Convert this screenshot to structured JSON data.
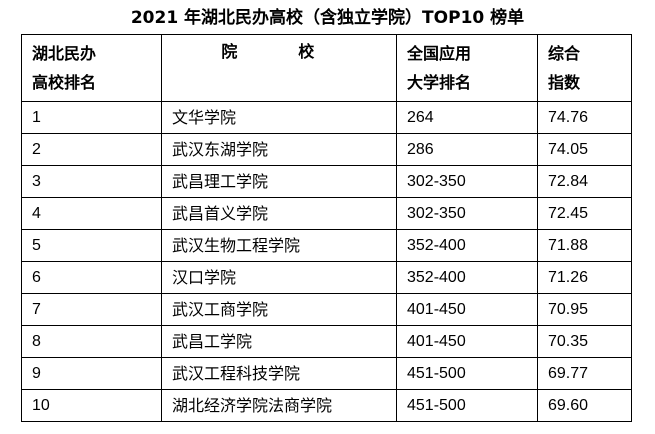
{
  "title": "2021 年湖北民办高校（含独立学院）TOP10 榜单",
  "headers": {
    "rank_line1": "湖北民办",
    "rank_line2": "高校排名",
    "school": "院　校",
    "national_line1": "全国应用",
    "national_line2": "大学排名",
    "score_line1": "综合",
    "score_line2": "指数"
  },
  "rows": [
    {
      "rank": "1",
      "school": "文华学院",
      "national": "264",
      "score": "74.76"
    },
    {
      "rank": "2",
      "school": "武汉东湖学院",
      "national": "286",
      "score": "74.05"
    },
    {
      "rank": "3",
      "school": "武昌理工学院",
      "national": "302-350",
      "score": "72.84"
    },
    {
      "rank": "4",
      "school": "武昌首义学院",
      "national": "302-350",
      "score": "72.45"
    },
    {
      "rank": "5",
      "school": "武汉生物工程学院",
      "national": "352-400",
      "score": "71.88"
    },
    {
      "rank": "6",
      "school": "汉口学院",
      "national": "352-400",
      "score": "71.26"
    },
    {
      "rank": "7",
      "school": "武汉工商学院",
      "national": "401-450",
      "score": "70.95"
    },
    {
      "rank": "8",
      "school": "武昌工学院",
      "national": "401-450",
      "score": "70.35"
    },
    {
      "rank": "9",
      "school": "武汉工程科技学院",
      "national": "451-500",
      "score": "69.77"
    },
    {
      "rank": "10",
      "school": "湖北经济学院法商学院",
      "national": "451-500",
      "score": "69.60"
    }
  ]
}
